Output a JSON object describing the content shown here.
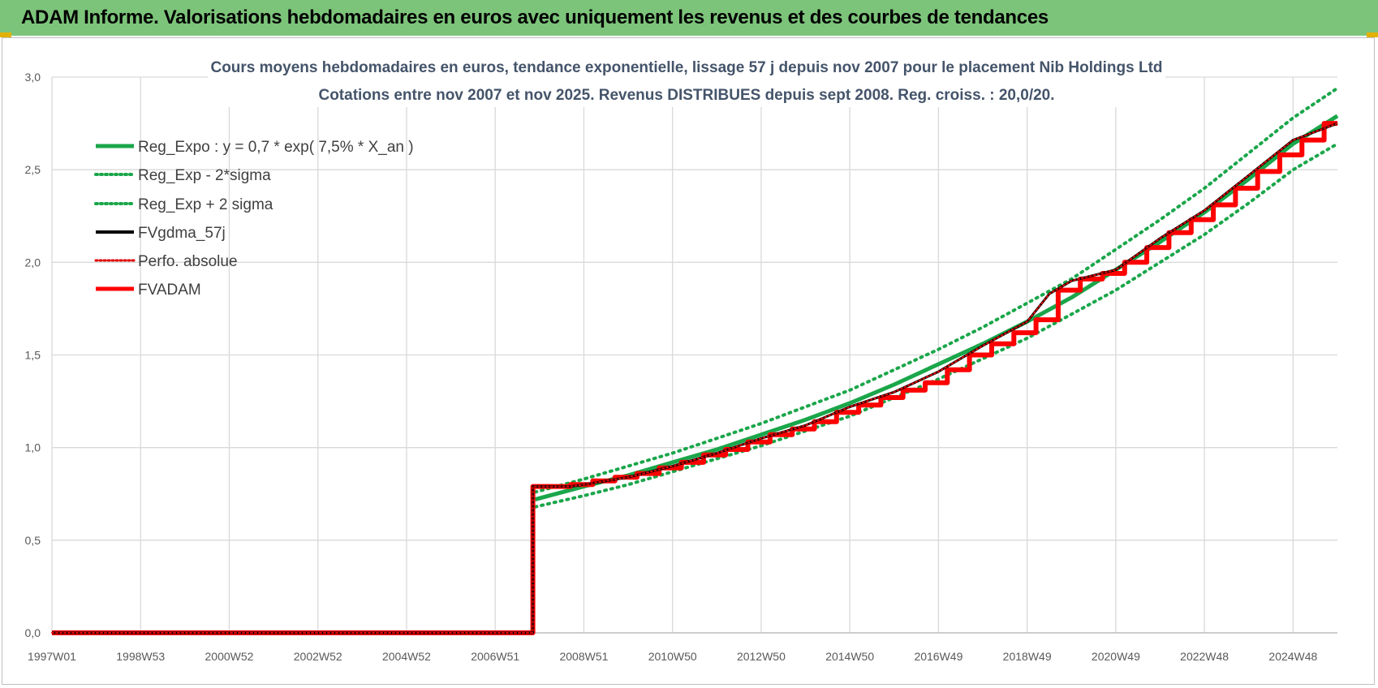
{
  "header": {
    "title": "ADAM Informe. Valorisations hebdomadaires en euros avec uniquement les revenus et des courbes de tendances"
  },
  "colors": {
    "header_bg": "#7cc47a",
    "trend": "#1aa64a",
    "fv": "#000000",
    "adam": "#ff0000",
    "perf": "#e00000",
    "grid": "#d9d9d9"
  },
  "chart_data": {
    "type": "line",
    "title_lines": [
      "Cours moyens  hebdomadaires en euros, tendance exponentielle, lissage 57 j depuis nov 2007  pour le placement Nib Holdings Ltd",
      "Cotations entre nov 2007 et nov 2025. Revenus DISTRIBUES depuis sept 2008. Reg. croiss. : 20,0/20."
    ],
    "xlabel": "",
    "ylabel": "",
    "ylim": [
      0,
      3.0
    ],
    "y_ticks": [
      "0,0",
      "0,5",
      "1,0",
      "1,5",
      "2,0",
      "2,5",
      "3,0"
    ],
    "x_range": [
      1997.0,
      2026.0
    ],
    "x_ticks": [
      {
        "label": "1997W01",
        "x": 1997.0
      },
      {
        "label": "1998W53",
        "x": 1999.0
      },
      {
        "label": "2000W52",
        "x": 2001.0
      },
      {
        "label": "2002W52",
        "x": 2003.0
      },
      {
        "label": "2004W52",
        "x": 2005.0
      },
      {
        "label": "2006W51",
        "x": 2007.0
      },
      {
        "label": "2008W51",
        "x": 2009.0
      },
      {
        "label": "2010W50",
        "x": 2011.0
      },
      {
        "label": "2012W50",
        "x": 2013.0
      },
      {
        "label": "2014W50",
        "x": 2015.0
      },
      {
        "label": "2016W49",
        "x": 2017.0
      },
      {
        "label": "2018W49",
        "x": 2019.0
      },
      {
        "label": "2020W49",
        "x": 2021.0
      },
      {
        "label": "2022W48",
        "x": 2023.0
      },
      {
        "label": "2024W48",
        "x": 2025.0
      }
    ],
    "grid": true,
    "legend_position": "top-left",
    "series": [
      {
        "name": "Reg_Expo : y = 0,7 * exp( 7,5% *  X_an )",
        "style": "solid",
        "color": "#1aa64a",
        "points": [
          [
            2007.9,
            0.72
          ],
          [
            2009,
            0.79
          ],
          [
            2010,
            0.85
          ],
          [
            2011,
            0.92
          ],
          [
            2012,
            0.99
          ],
          [
            2013,
            1.07
          ],
          [
            2014,
            1.15
          ],
          [
            2015,
            1.24
          ],
          [
            2016,
            1.34
          ],
          [
            2017,
            1.45
          ],
          [
            2018,
            1.56
          ],
          [
            2019,
            1.68
          ],
          [
            2020,
            1.81
          ],
          [
            2021,
            1.96
          ],
          [
            2022,
            2.11
          ],
          [
            2023,
            2.27
          ],
          [
            2024,
            2.45
          ],
          [
            2025,
            2.64
          ],
          [
            2026,
            2.79
          ]
        ]
      },
      {
        "name": "Reg_Exp - 2*sigma",
        "style": "dotted",
        "color": "#1aa64a",
        "points": [
          [
            2007.9,
            0.68
          ],
          [
            2009,
            0.74
          ],
          [
            2010,
            0.8
          ],
          [
            2011,
            0.87
          ],
          [
            2012,
            0.94
          ],
          [
            2013,
            1.01
          ],
          [
            2014,
            1.09
          ],
          [
            2015,
            1.17
          ],
          [
            2016,
            1.27
          ],
          [
            2017,
            1.37
          ],
          [
            2018,
            1.48
          ],
          [
            2019,
            1.59
          ],
          [
            2020,
            1.72
          ],
          [
            2021,
            1.85
          ],
          [
            2022,
            2.0
          ],
          [
            2023,
            2.15
          ],
          [
            2024,
            2.32
          ],
          [
            2025,
            2.5
          ],
          [
            2026,
            2.64
          ]
        ]
      },
      {
        "name": "Reg_Exp + 2 sigma",
        "style": "dotted",
        "color": "#1aa64a",
        "points": [
          [
            2007.9,
            0.76
          ],
          [
            2009,
            0.83
          ],
          [
            2010,
            0.9
          ],
          [
            2011,
            0.97
          ],
          [
            2012,
            1.05
          ],
          [
            2013,
            1.13
          ],
          [
            2014,
            1.22
          ],
          [
            2015,
            1.31
          ],
          [
            2016,
            1.42
          ],
          [
            2017,
            1.53
          ],
          [
            2018,
            1.65
          ],
          [
            2019,
            1.78
          ],
          [
            2020,
            1.91
          ],
          [
            2021,
            2.07
          ],
          [
            2022,
            2.23
          ],
          [
            2023,
            2.4
          ],
          [
            2024,
            2.59
          ],
          [
            2025,
            2.78
          ],
          [
            2026,
            2.94
          ]
        ]
      },
      {
        "name": "FVgdma_57j",
        "style": "solid",
        "color": "#000000",
        "points": [
          [
            1997.0,
            0.0
          ],
          [
            2007.85,
            0.0
          ],
          [
            2007.85,
            0.79
          ],
          [
            2008.7,
            0.79
          ],
          [
            2009,
            0.8
          ],
          [
            2010,
            0.84
          ],
          [
            2011,
            0.9
          ],
          [
            2012,
            0.97
          ],
          [
            2013,
            1.05
          ],
          [
            2014,
            1.12
          ],
          [
            2015,
            1.22
          ],
          [
            2016,
            1.3
          ],
          [
            2017,
            1.41
          ],
          [
            2018,
            1.55
          ],
          [
            2019,
            1.68
          ],
          [
            2019.5,
            1.83
          ],
          [
            2020,
            1.9
          ],
          [
            2021,
            1.96
          ],
          [
            2022,
            2.13
          ],
          [
            2023,
            2.28
          ],
          [
            2024,
            2.47
          ],
          [
            2025,
            2.66
          ],
          [
            2026,
            2.75
          ]
        ]
      },
      {
        "name": "Perfo. absolue",
        "style": "dotted",
        "color": "#e00000",
        "points": [
          [
            1997.0,
            0.0
          ],
          [
            2007.85,
            0.0
          ],
          [
            2007.85,
            0.79
          ],
          [
            2008.7,
            0.79
          ],
          [
            2009,
            0.8
          ],
          [
            2010,
            0.84
          ],
          [
            2011,
            0.9
          ],
          [
            2012,
            0.97
          ],
          [
            2013,
            1.05
          ],
          [
            2014,
            1.12
          ],
          [
            2015,
            1.22
          ],
          [
            2016,
            1.3
          ],
          [
            2017,
            1.41
          ],
          [
            2018,
            1.55
          ],
          [
            2019,
            1.68
          ],
          [
            2019.5,
            1.83
          ],
          [
            2020,
            1.9
          ],
          [
            2021,
            1.96
          ],
          [
            2022,
            2.13
          ],
          [
            2023,
            2.28
          ],
          [
            2024,
            2.47
          ],
          [
            2025,
            2.66
          ],
          [
            2026,
            2.75
          ]
        ]
      },
      {
        "name": "FVADAM",
        "style": "step",
        "color": "#ff0000",
        "points": [
          [
            1997.0,
            0.0
          ],
          [
            2007.85,
            0.0
          ],
          [
            2007.85,
            0.79
          ],
          [
            2008.7,
            0.79
          ],
          [
            2008.7,
            0.8
          ],
          [
            2009.2,
            0.8
          ],
          [
            2009.2,
            0.82
          ],
          [
            2009.7,
            0.82
          ],
          [
            2009.7,
            0.84
          ],
          [
            2010.2,
            0.84
          ],
          [
            2010.2,
            0.86
          ],
          [
            2010.7,
            0.86
          ],
          [
            2010.7,
            0.89
          ],
          [
            2011.2,
            0.89
          ],
          [
            2011.2,
            0.92
          ],
          [
            2011.7,
            0.92
          ],
          [
            2011.7,
            0.96
          ],
          [
            2012.2,
            0.96
          ],
          [
            2012.2,
            0.99
          ],
          [
            2012.7,
            0.99
          ],
          [
            2012.7,
            1.03
          ],
          [
            2013.2,
            1.03
          ],
          [
            2013.2,
            1.07
          ],
          [
            2013.7,
            1.07
          ],
          [
            2013.7,
            1.1
          ],
          [
            2014.2,
            1.1
          ],
          [
            2014.2,
            1.14
          ],
          [
            2014.7,
            1.14
          ],
          [
            2014.7,
            1.19
          ],
          [
            2015.2,
            1.19
          ],
          [
            2015.2,
            1.23
          ],
          [
            2015.7,
            1.23
          ],
          [
            2015.7,
            1.27
          ],
          [
            2016.2,
            1.27
          ],
          [
            2016.2,
            1.31
          ],
          [
            2016.7,
            1.31
          ],
          [
            2016.7,
            1.35
          ],
          [
            2017.2,
            1.35
          ],
          [
            2017.2,
            1.42
          ],
          [
            2017.7,
            1.42
          ],
          [
            2017.7,
            1.5
          ],
          [
            2018.2,
            1.5
          ],
          [
            2018.2,
            1.56
          ],
          [
            2018.7,
            1.56
          ],
          [
            2018.7,
            1.62
          ],
          [
            2019.2,
            1.62
          ],
          [
            2019.2,
            1.69
          ],
          [
            2019.7,
            1.69
          ],
          [
            2019.7,
            1.85
          ],
          [
            2020.2,
            1.85
          ],
          [
            2020.2,
            1.91
          ],
          [
            2020.7,
            1.91
          ],
          [
            2020.7,
            1.94
          ],
          [
            2021.2,
            1.94
          ],
          [
            2021.2,
            2.0
          ],
          [
            2021.7,
            2.0
          ],
          [
            2021.7,
            2.08
          ],
          [
            2022.2,
            2.08
          ],
          [
            2022.2,
            2.16
          ],
          [
            2022.7,
            2.16
          ],
          [
            2022.7,
            2.23
          ],
          [
            2023.2,
            2.23
          ],
          [
            2023.2,
            2.31
          ],
          [
            2023.7,
            2.31
          ],
          [
            2023.7,
            2.4
          ],
          [
            2024.2,
            2.4
          ],
          [
            2024.2,
            2.49
          ],
          [
            2024.7,
            2.49
          ],
          [
            2024.7,
            2.58
          ],
          [
            2025.2,
            2.58
          ],
          [
            2025.2,
            2.66
          ],
          [
            2025.7,
            2.66
          ],
          [
            2025.7,
            2.75
          ],
          [
            2026.0,
            2.75
          ]
        ]
      }
    ]
  }
}
